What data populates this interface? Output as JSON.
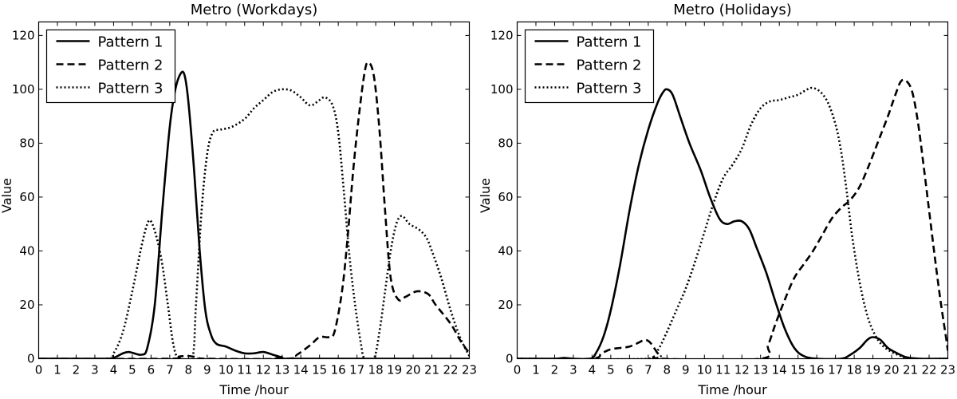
{
  "chart_data": [
    {
      "type": "line",
      "title": "Metro (Workdays)",
      "xlabel": "Time /hour",
      "ylabel": "Value",
      "xlim": [
        0,
        23
      ],
      "ylim": [
        0,
        125
      ],
      "xticks": [
        "0",
        "1",
        "2",
        "3",
        "4",
        "5",
        "6",
        "7",
        "8",
        "9",
        "10",
        "11",
        "12",
        "13",
        "14",
        "15",
        "16",
        "17",
        "18",
        "19",
        "20",
        "21",
        "22",
        "23"
      ],
      "yticks": [
        "0",
        "20",
        "40",
        "60",
        "80",
        "100",
        "120"
      ],
      "legend_position": "top-left",
      "grid": false,
      "series": [
        {
          "name": "Pattern 1",
          "line_style": "solid",
          "points": [
            [
              0,
              0
            ],
            [
              3.5,
              0
            ],
            [
              4,
              0.3
            ],
            [
              4.5,
              2
            ],
            [
              4.8,
              2.5
            ],
            [
              5,
              2.2
            ],
            [
              5.5,
              1.5
            ],
            [
              5.8,
              4
            ],
            [
              6.2,
              20
            ],
            [
              6.6,
              55
            ],
            [
              7,
              86
            ],
            [
              7.3,
              100
            ],
            [
              7.6,
              106
            ],
            [
              7.8,
              105
            ],
            [
              8,
              95
            ],
            [
              8.3,
              70
            ],
            [
              8.6,
              40
            ],
            [
              8.9,
              18
            ],
            [
              9.2,
              9
            ],
            [
              9.5,
              5.5
            ],
            [
              10,
              4.5
            ],
            [
              10.5,
              3
            ],
            [
              11,
              2
            ],
            [
              11.5,
              2
            ],
            [
              12,
              2.5
            ],
            [
              12.5,
              1.5
            ],
            [
              13,
              0.5
            ],
            [
              13.5,
              0
            ],
            [
              23,
              0
            ]
          ]
        },
        {
          "name": "Pattern 2",
          "line_style": "dashed",
          "points": [
            [
              0,
              0
            ],
            [
              7,
              0
            ],
            [
              7.5,
              0.8
            ],
            [
              8,
              1
            ],
            [
              8.5,
              0.5
            ],
            [
              9,
              0
            ],
            [
              13.3,
              0
            ],
            [
              13.8,
              1.5
            ],
            [
              14.5,
              5
            ],
            [
              15,
              8
            ],
            [
              15.5,
              8
            ],
            [
              15.8,
              10
            ],
            [
              16.2,
              25
            ],
            [
              16.5,
              45
            ],
            [
              16.8,
              70
            ],
            [
              17.1,
              90
            ],
            [
              17.4,
              106
            ],
            [
              17.6,
              110
            ],
            [
              17.9,
              105
            ],
            [
              18.2,
              85
            ],
            [
              18.5,
              55
            ],
            [
              18.8,
              30
            ],
            [
              19.2,
              22
            ],
            [
              19.6,
              23
            ],
            [
              20.2,
              25
            ],
            [
              20.8,
              24
            ],
            [
              21.2,
              20
            ],
            [
              22,
              13
            ],
            [
              22.5,
              7
            ],
            [
              23,
              2
            ]
          ]
        },
        {
          "name": "Pattern 3",
          "line_style": "dotted",
          "points": [
            [
              0,
              0
            ],
            [
              3.6,
              0
            ],
            [
              4,
              2
            ],
            [
              4.5,
              10
            ],
            [
              5,
              25
            ],
            [
              5.5,
              42
            ],
            [
              5.8,
              50
            ],
            [
              6,
              51
            ],
            [
              6.3,
              45
            ],
            [
              6.6,
              35
            ],
            [
              6.9,
              20
            ],
            [
              7.2,
              5
            ],
            [
              7.5,
              0
            ],
            [
              8.2,
              0
            ],
            [
              8.4,
              20
            ],
            [
              8.7,
              55
            ],
            [
              9,
              76
            ],
            [
              9.3,
              84
            ],
            [
              9.7,
              85
            ],
            [
              10.3,
              86
            ],
            [
              11,
              89
            ],
            [
              11.5,
              93
            ],
            [
              12,
              96
            ],
            [
              12.5,
              99
            ],
            [
              13,
              100
            ],
            [
              13.5,
              99.5
            ],
            [
              14,
              97
            ],
            [
              14.5,
              94
            ],
            [
              15,
              96
            ],
            [
              15.3,
              97
            ],
            [
              15.7,
              94
            ],
            [
              16,
              84
            ],
            [
              16.3,
              62
            ],
            [
              16.6,
              38
            ],
            [
              16.9,
              20
            ],
            [
              17.2,
              6
            ],
            [
              17.4,
              0
            ],
            [
              17.9,
              0
            ],
            [
              18.2,
              10
            ],
            [
              18.5,
              25
            ],
            [
              18.8,
              40
            ],
            [
              19.1,
              50
            ],
            [
              19.4,
              53
            ],
            [
              19.8,
              50
            ],
            [
              20.3,
              48
            ],
            [
              20.7,
              45
            ],
            [
              21,
              40
            ],
            [
              21.5,
              30
            ],
            [
              22,
              18
            ],
            [
              22.5,
              8
            ],
            [
              23,
              1
            ]
          ]
        }
      ]
    },
    {
      "type": "line",
      "title": "Metro (Holidays)",
      "xlabel": "Time /hour",
      "ylabel": "Value",
      "xlim": [
        0,
        23
      ],
      "ylim": [
        0,
        125
      ],
      "xticks": [
        "0",
        "1",
        "2",
        "3",
        "4",
        "5",
        "6",
        "7",
        "8",
        "9",
        "10",
        "11",
        "12",
        "13",
        "14",
        "15",
        "16",
        "17",
        "18",
        "19",
        "20",
        "21",
        "22",
        "23"
      ],
      "yticks": [
        "0",
        "20",
        "40",
        "60",
        "80",
        "100",
        "120"
      ],
      "legend_position": "top-left",
      "grid": false,
      "series": [
        {
          "name": "Pattern 1",
          "line_style": "solid",
          "points": [
            [
              0,
              0
            ],
            [
              2,
              0
            ],
            [
              2.5,
              0.3
            ],
            [
              3,
              0
            ],
            [
              3.9,
              0
            ],
            [
              4.2,
              2
            ],
            [
              4.6,
              8
            ],
            [
              5,
              18
            ],
            [
              5.5,
              35
            ],
            [
              6,
              55
            ],
            [
              6.5,
              72
            ],
            [
              7,
              85
            ],
            [
              7.5,
              95
            ],
            [
              7.8,
              99
            ],
            [
              8,
              100
            ],
            [
              8.3,
              98
            ],
            [
              8.7,
              90
            ],
            [
              9.2,
              80
            ],
            [
              9.8,
              70
            ],
            [
              10.3,
              60
            ],
            [
              10.8,
              52
            ],
            [
              11.2,
              50
            ],
            [
              11.6,
              51
            ],
            [
              12,
              51
            ],
            [
              12.4,
              48
            ],
            [
              12.8,
              41
            ],
            [
              13.3,
              32
            ],
            [
              13.8,
              21
            ],
            [
              14.3,
              11
            ],
            [
              14.8,
              4
            ],
            [
              15.3,
              1
            ],
            [
              16,
              0
            ],
            [
              17.3,
              0
            ],
            [
              17.8,
              1.5
            ],
            [
              18.3,
              4
            ],
            [
              18.7,
              7
            ],
            [
              19,
              8
            ],
            [
              19.4,
              7
            ],
            [
              19.8,
              4
            ],
            [
              20.3,
              2
            ],
            [
              20.8,
              0.5
            ],
            [
              21.5,
              0
            ],
            [
              23,
              0
            ]
          ]
        },
        {
          "name": "Pattern 2",
          "line_style": "dashed",
          "points": [
            [
              0,
              0
            ],
            [
              3.9,
              0
            ],
            [
              4.5,
              2
            ],
            [
              5,
              3.5
            ],
            [
              5.5,
              4
            ],
            [
              6,
              4.5
            ],
            [
              6.5,
              6
            ],
            [
              6.8,
              7
            ],
            [
              7.1,
              6
            ],
            [
              7.5,
              2
            ],
            [
              7.7,
              0
            ],
            [
              13,
              0
            ],
            [
              13.4,
              5
            ],
            [
              13.8,
              13
            ],
            [
              14.3,
              22
            ],
            [
              14.8,
              30
            ],
            [
              15.3,
              35
            ],
            [
              15.8,
              40
            ],
            [
              16.3,
              46
            ],
            [
              16.8,
              52
            ],
            [
              17.3,
              56
            ],
            [
              17.8,
              59
            ],
            [
              18.3,
              64
            ],
            [
              18.8,
              72
            ],
            [
              19.3,
              81
            ],
            [
              19.8,
              90
            ],
            [
              20.2,
              98
            ],
            [
              20.5,
              103
            ],
            [
              20.8,
              103
            ],
            [
              21.1,
              99
            ],
            [
              21.4,
              88
            ],
            [
              21.7,
              72
            ],
            [
              22,
              55
            ],
            [
              22.3,
              38
            ],
            [
              22.6,
              22
            ],
            [
              22.9,
              8
            ],
            [
              23,
              3
            ]
          ]
        },
        {
          "name": "Pattern 3",
          "line_style": "dotted",
          "points": [
            [
              0,
              0
            ],
            [
              7,
              0
            ],
            [
              7.5,
              3
            ],
            [
              8,
              10
            ],
            [
              8.5,
              18
            ],
            [
              9,
              26
            ],
            [
              9.5,
              36
            ],
            [
              10,
              47
            ],
            [
              10.5,
              58
            ],
            [
              11,
              67
            ],
            [
              11.5,
              72
            ],
            [
              12,
              78
            ],
            [
              12.5,
              87
            ],
            [
              13,
              93
            ],
            [
              13.5,
              95.5
            ],
            [
              14,
              96
            ],
            [
              14.5,
              97
            ],
            [
              15,
              98
            ],
            [
              15.5,
              100
            ],
            [
              15.8,
              100.5
            ],
            [
              16.2,
              99
            ],
            [
              16.6,
              95
            ],
            [
              17,
              87
            ],
            [
              17.3,
              77
            ],
            [
              17.6,
              62
            ],
            [
              17.9,
              45
            ],
            [
              18.3,
              28
            ],
            [
              18.7,
              16
            ],
            [
              19.1,
              9
            ],
            [
              19.5,
              5
            ],
            [
              20,
              2.5
            ],
            [
              20.5,
              1
            ],
            [
              21,
              0
            ],
            [
              23,
              0
            ]
          ]
        }
      ]
    }
  ]
}
